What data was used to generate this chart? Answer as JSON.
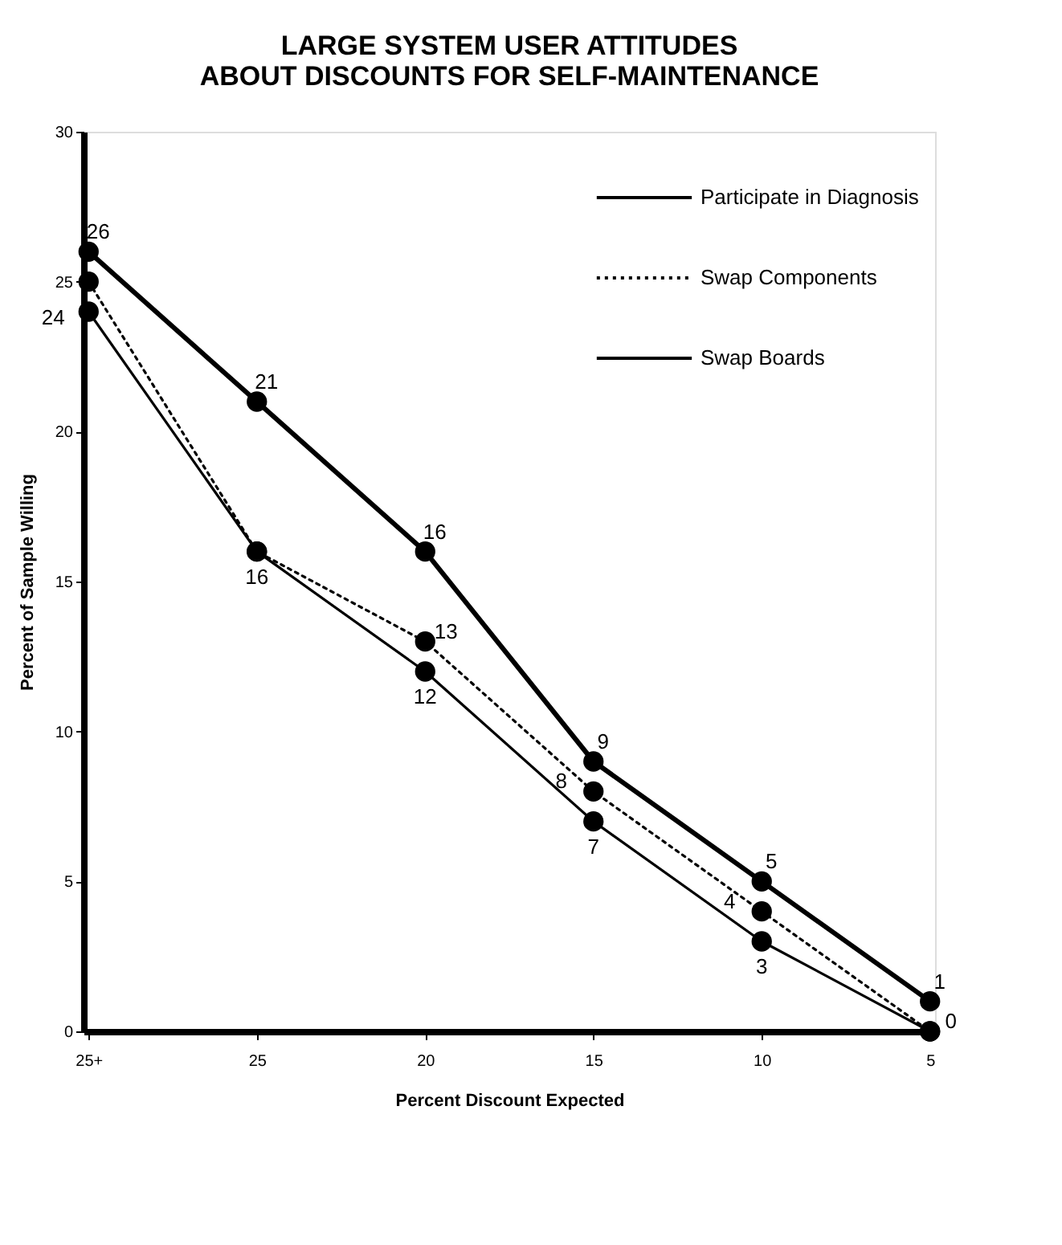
{
  "chart_data": {
    "type": "line",
    "title": "LARGE SYSTEM USER ATTITUDES ABOUT DISCOUNTS FOR SELF-MAINTENANCE",
    "xlabel": "Percent Discount Expected",
    "ylabel": "Percent of Sample Willing",
    "categories": [
      "25+",
      "25",
      "20",
      "15",
      "10",
      "5"
    ],
    "series": [
      {
        "name": "Participate in Diagnosis",
        "color": "#000000",
        "line_style": "solid",
        "values": [
          26,
          21,
          16,
          9,
          5,
          1
        ],
        "value_labels": [
          "26",
          "21",
          "16",
          "9",
          "5",
          "1"
        ]
      },
      {
        "name": "Swap Components",
        "color": "#000000",
        "line_style": "dotted",
        "values": [
          25,
          16,
          13,
          8,
          4,
          0
        ],
        "value_labels": [
          null,
          null,
          "13",
          "8",
          "4",
          "0"
        ]
      },
      {
        "name": "Swap Boards",
        "color": "#000000",
        "line_style": "solid",
        "values": [
          24,
          16,
          12,
          7,
          3,
          0
        ],
        "value_labels": [
          "24",
          "16",
          "12",
          "7",
          "3",
          null
        ]
      }
    ],
    "ylim": [
      0,
      30
    ],
    "yticks": [
      0,
      5,
      10,
      15,
      20,
      25,
      30
    ],
    "grid": false,
    "legend": "top right",
    "marker": "circle"
  }
}
